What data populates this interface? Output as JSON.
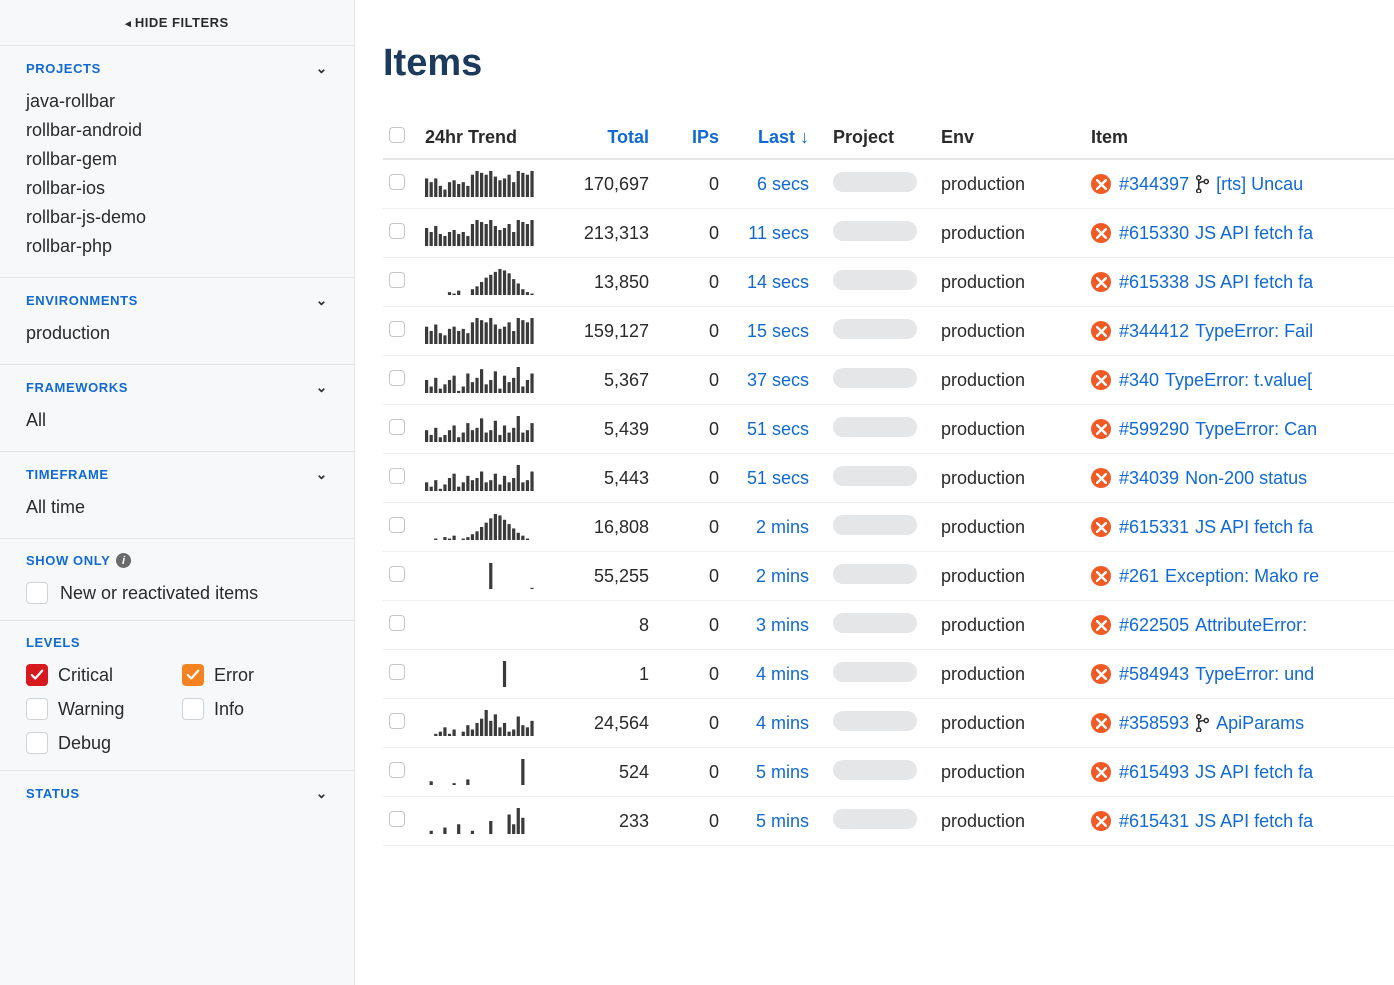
{
  "sidebar": {
    "hide_filters": "HIDE FILTERS",
    "projects": {
      "label": "PROJECTS",
      "items": [
        "java-rollbar",
        "rollbar-android",
        "rollbar-gem",
        "rollbar-ios",
        "rollbar-js-demo",
        "rollbar-php"
      ]
    },
    "environments": {
      "label": "ENVIRONMENTS",
      "value": "production"
    },
    "frameworks": {
      "label": "FRAMEWORKS",
      "value": "All"
    },
    "timeframe": {
      "label": "TIMEFRAME",
      "value": "All time"
    },
    "show_only": {
      "label": "SHOW ONLY",
      "option": "New or reactivated items"
    },
    "levels": {
      "label": "LEVELS",
      "items": [
        {
          "label": "Critical",
          "style": "critical",
          "checked": true
        },
        {
          "label": "Error",
          "style": "error",
          "checked": true
        },
        {
          "label": "Warning",
          "style": "empty",
          "checked": false
        },
        {
          "label": "Info",
          "style": "empty",
          "checked": false
        },
        {
          "label": "Debug",
          "style": "empty",
          "checked": false
        }
      ]
    },
    "status": {
      "label": "STATUS"
    }
  },
  "main": {
    "title": "Items",
    "headers": {
      "trend": "24hr Trend",
      "total": "Total",
      "ips": "IPs",
      "last": "Last ↓",
      "project": "Project",
      "env": "Env",
      "item": "Item"
    },
    "rows": [
      {
        "spark": [
          10,
          8,
          10,
          6,
          4,
          8,
          9,
          7,
          8,
          6,
          12,
          14,
          13,
          12,
          14,
          11,
          9,
          10,
          12,
          8,
          14,
          13,
          12,
          14
        ],
        "total": "170,697",
        "ips": "0",
        "last": "6 secs",
        "env": "production",
        "id": "#344397",
        "branch": true,
        "title": "[rts] Uncau"
      },
      {
        "spark": [
          9,
          7,
          10,
          6,
          5,
          7,
          8,
          6,
          7,
          5,
          11,
          13,
          12,
          11,
          13,
          10,
          8,
          9,
          11,
          7,
          13,
          12,
          11,
          13
        ],
        "total": "213,313",
        "ips": "0",
        "last": "11 secs",
        "env": "production",
        "id": "#615330",
        "branch": false,
        "title": "JS API fetch fa"
      },
      {
        "spark": [
          0,
          0,
          0,
          0,
          0,
          2,
          1,
          3,
          0,
          0,
          4,
          6,
          9,
          12,
          14,
          16,
          18,
          17,
          15,
          11,
          8,
          4,
          2,
          1
        ],
        "total": "13,850",
        "ips": "0",
        "last": "14 secs",
        "env": "production",
        "id": "#615338",
        "branch": false,
        "title": "JS API fetch fa"
      },
      {
        "spark": [
          8,
          6,
          9,
          5,
          4,
          7,
          8,
          6,
          7,
          5,
          10,
          12,
          11,
          10,
          12,
          9,
          7,
          8,
          10,
          6,
          12,
          11,
          10,
          12
        ],
        "total": "159,127",
        "ips": "0",
        "last": "15 secs",
        "env": "production",
        "id": "#344412",
        "branch": false,
        "title": "TypeError: Fail"
      },
      {
        "spark": [
          6,
          3,
          7,
          2,
          4,
          6,
          8,
          1,
          3,
          9,
          5,
          7,
          11,
          4,
          6,
          10,
          2,
          8,
          5,
          7,
          12,
          3,
          6,
          9
        ],
        "total": "5,367",
        "ips": "0",
        "last": "37 secs",
        "env": "production",
        "id": "#340",
        "branch": false,
        "title": "TypeError: t.value["
      },
      {
        "spark": [
          5,
          3,
          6,
          2,
          3,
          5,
          7,
          2,
          4,
          8,
          5,
          6,
          10,
          4,
          5,
          9,
          3,
          7,
          4,
          6,
          11,
          4,
          5,
          8
        ],
        "total": "5,439",
        "ips": "0",
        "last": "51 secs",
        "env": "production",
        "id": "#599290",
        "branch": false,
        "title": "TypeError: Can"
      },
      {
        "spark": [
          4,
          2,
          5,
          1,
          3,
          6,
          8,
          2,
          4,
          7,
          5,
          6,
          9,
          4,
          5,
          8,
          3,
          7,
          4,
          6,
          12,
          4,
          5,
          9
        ],
        "total": "5,443",
        "ips": "0",
        "last": "51 secs",
        "env": "production",
        "id": "#34039",
        "branch": false,
        "title": "Non-200 status"
      },
      {
        "spark": [
          0,
          0,
          1,
          0,
          2,
          1,
          3,
          0,
          1,
          2,
          4,
          6,
          9,
          12,
          15,
          18,
          17,
          14,
          11,
          8,
          5,
          3,
          1,
          0
        ],
        "total": "16,808",
        "ips": "0",
        "last": "2 mins",
        "env": "production",
        "id": "#615331",
        "branch": false,
        "title": "JS API fetch fa"
      },
      {
        "spark": [
          0,
          0,
          0,
          0,
          0,
          0,
          0,
          0,
          0,
          0,
          0,
          0,
          0,
          0,
          22,
          0,
          0,
          0,
          0,
          0,
          0,
          0,
          0,
          1
        ],
        "total": "55,255",
        "ips": "0",
        "last": "2 mins",
        "env": "production",
        "id": "#261",
        "branch": false,
        "title": "Exception: Mako re"
      },
      {
        "spark": [
          0,
          0,
          0,
          0,
          0,
          0,
          0,
          0,
          0,
          0,
          0,
          0,
          0,
          0,
          0,
          0,
          0,
          0,
          0,
          0,
          0,
          0,
          0,
          0
        ],
        "total": "8",
        "ips": "0",
        "last": "3 mins",
        "env": "production",
        "id": "#622505",
        "branch": false,
        "title": "AttributeError:"
      },
      {
        "spark": [
          0,
          0,
          0,
          0,
          0,
          0,
          0,
          0,
          0,
          0,
          0,
          0,
          0,
          0,
          0,
          0,
          0,
          20,
          0,
          0,
          0,
          0,
          0,
          0
        ],
        "total": "1",
        "ips": "0",
        "last": "4 mins",
        "env": "production",
        "id": "#584943",
        "branch": false,
        "title": "TypeError: und"
      },
      {
        "spark": [
          0,
          0,
          1,
          2,
          4,
          1,
          3,
          0,
          2,
          5,
          3,
          6,
          8,
          12,
          7,
          10,
          4,
          6,
          2,
          3,
          9,
          5,
          4,
          7
        ],
        "total": "24,564",
        "ips": "0",
        "last": "4 mins",
        "env": "production",
        "id": "#358593",
        "branch": true,
        "title": "ApiParams"
      },
      {
        "spark": [
          0,
          2,
          0,
          0,
          0,
          0,
          1,
          0,
          0,
          3,
          0,
          0,
          0,
          0,
          0,
          0,
          0,
          0,
          0,
          0,
          0,
          14,
          0,
          0
        ],
        "total": "524",
        "ips": "0",
        "last": "5 mins",
        "env": "production",
        "id": "#615493",
        "branch": false,
        "title": "JS API fetch fa"
      },
      {
        "spark": [
          0,
          1,
          0,
          0,
          2,
          0,
          0,
          3,
          0,
          0,
          1,
          0,
          0,
          0,
          4,
          0,
          0,
          0,
          6,
          3,
          8,
          5,
          0,
          0
        ],
        "total": "233",
        "ips": "0",
        "last": "5 mins",
        "env": "production",
        "id": "#615431",
        "branch": false,
        "title": "JS API fetch fa"
      }
    ]
  }
}
